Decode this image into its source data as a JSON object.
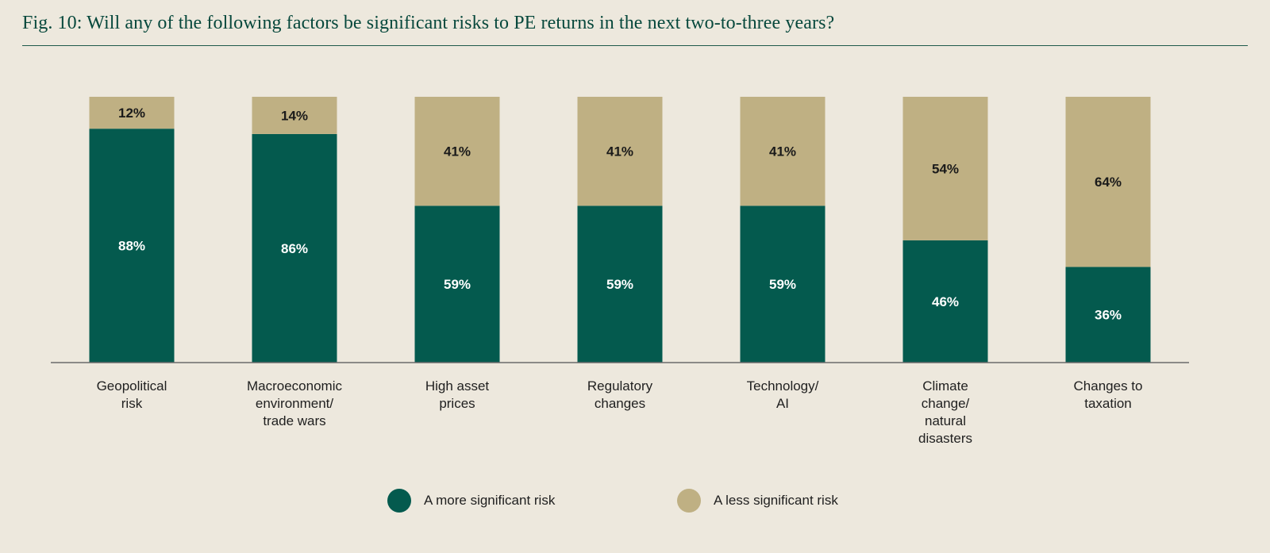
{
  "title": "Fig. 10: Will any of the following factors be significant risks to PE returns in the next two-to-three years?",
  "chart_data": {
    "type": "bar",
    "stacked": true,
    "percent_stacked": true,
    "categories": [
      [
        "Geopolitical",
        "risk"
      ],
      [
        "Macroeconomic",
        "environment/",
        "trade wars"
      ],
      [
        "High asset",
        "prices"
      ],
      [
        "Regulatory",
        "changes"
      ],
      [
        "Technology/",
        "AI"
      ],
      [
        "Climate",
        "change/",
        "natural",
        "disasters"
      ],
      [
        "Changes to",
        "taxation"
      ]
    ],
    "series": [
      {
        "name": "A more significant risk",
        "color": "#045a4e",
        "label_color": "#ffffff",
        "values": [
          88,
          86,
          59,
          59,
          59,
          46,
          36
        ],
        "labels": [
          "88%",
          "86%",
          "59%",
          "59%",
          "59%",
          "46%",
          "36%"
        ]
      },
      {
        "name": "A less significant risk",
        "color": "#bfb083",
        "label_color": "#1a1a1a",
        "values": [
          12,
          14,
          41,
          41,
          41,
          54,
          64
        ],
        "labels": [
          "12%",
          "14%",
          "41%",
          "41%",
          "41%",
          "54%",
          "64%"
        ]
      }
    ],
    "ylim": [
      0,
      100
    ],
    "xlabel": "",
    "ylabel": "",
    "grid": false,
    "legend_position": "bottom-center"
  }
}
